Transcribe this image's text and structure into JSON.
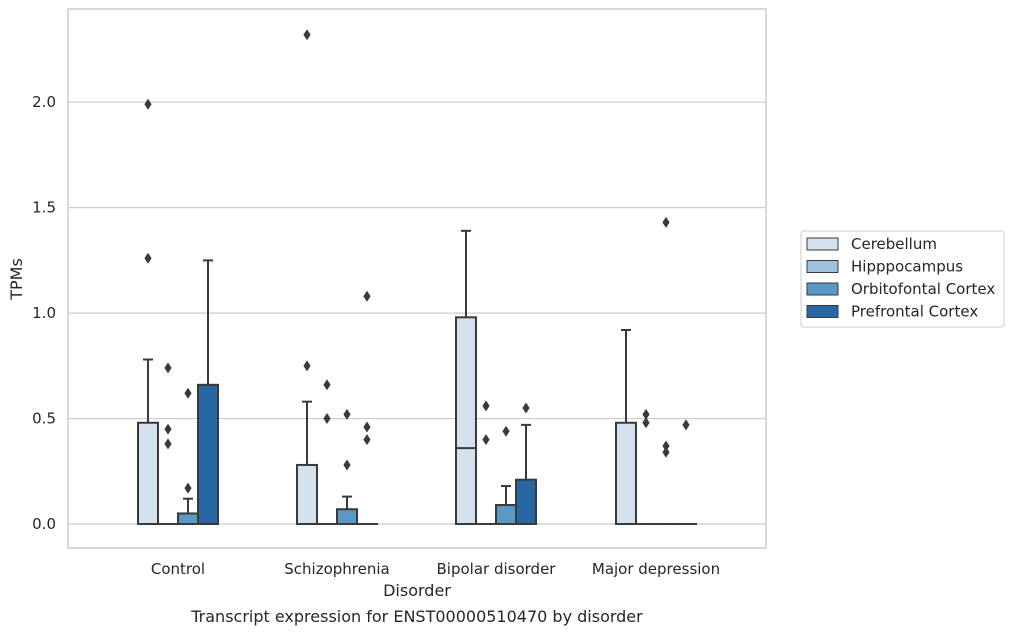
{
  "chart_data": {
    "type": "box",
    "title": "Transcript expression for ENST00000510470 by disorder",
    "xlabel": "Disorder",
    "ylabel": "TPMs",
    "ylim": [
      -0.11,
      2.45
    ],
    "yticks": [
      0.0,
      0.5,
      1.0,
      1.5,
      2.0
    ],
    "ytick_labels": [
      "0.0",
      "0.5",
      "1.0",
      "1.5",
      "2.0"
    ],
    "grid": "horizontal",
    "legend_position": "right",
    "categories": [
      "Control",
      "Schizophrenia",
      "Bipolar disorder",
      "Major depression"
    ],
    "series": [
      {
        "name": "Cerebellum",
        "color": "#d4e2f0",
        "boxes": [
          {
            "q1": 0.0,
            "median": 0.0,
            "q3": 0.48,
            "whisker_low": 0.0,
            "whisker_high": 0.78,
            "outliers": [
              1.26,
              1.99
            ]
          },
          {
            "q1": 0.0,
            "median": 0.0,
            "q3": 0.28,
            "whisker_low": 0.0,
            "whisker_high": 0.58,
            "outliers": [
              0.75,
              2.32
            ]
          },
          {
            "q1": 0.0,
            "median": 0.36,
            "q3": 0.98,
            "whisker_low": 0.0,
            "whisker_high": 1.39,
            "outliers": []
          },
          {
            "q1": 0.0,
            "median": 0.0,
            "q3": 0.48,
            "whisker_low": 0.0,
            "whisker_high": 0.92,
            "outliers": []
          }
        ]
      },
      {
        "name": "Hipppocampus",
        "color": "#9dc3de",
        "boxes": [
          {
            "q1": 0.0,
            "median": 0.0,
            "q3": 0.0,
            "whisker_low": 0.0,
            "whisker_high": 0.0,
            "outliers": [
              0.38,
              0.45,
              0.74
            ]
          },
          {
            "q1": 0.0,
            "median": 0.0,
            "q3": 0.0,
            "whisker_low": 0.0,
            "whisker_high": 0.0,
            "outliers": [
              0.5,
              0.66
            ]
          },
          {
            "q1": 0.0,
            "median": 0.0,
            "q3": 0.0,
            "whisker_low": 0.0,
            "whisker_high": 0.0,
            "outliers": [
              0.4,
              0.56
            ]
          },
          {
            "q1": 0.0,
            "median": 0.0,
            "q3": 0.0,
            "whisker_low": 0.0,
            "whisker_high": 0.0,
            "outliers": [
              0.48,
              0.52
            ]
          }
        ]
      },
      {
        "name": "Orbitofontal Cortex",
        "color": "#5a98c6",
        "boxes": [
          {
            "q1": 0.0,
            "median": 0.0,
            "q3": 0.05,
            "whisker_low": 0.0,
            "whisker_high": 0.12,
            "outliers": [
              0.17,
              0.62
            ]
          },
          {
            "q1": 0.0,
            "median": 0.0,
            "q3": 0.07,
            "whisker_low": 0.0,
            "whisker_high": 0.13,
            "outliers": [
              0.28,
              0.52
            ]
          },
          {
            "q1": 0.0,
            "median": 0.0,
            "q3": 0.09,
            "whisker_low": 0.0,
            "whisker_high": 0.18,
            "outliers": [
              0.44
            ]
          },
          {
            "q1": 0.0,
            "median": 0.0,
            "q3": 0.0,
            "whisker_low": 0.0,
            "whisker_high": 0.0,
            "outliers": [
              0.34,
              0.37,
              1.43
            ]
          }
        ]
      },
      {
        "name": "Prefrontal Cortex",
        "color": "#2866a4",
        "boxes": [
          {
            "q1": 0.0,
            "median": 0.0,
            "q3": 0.66,
            "whisker_low": 0.0,
            "whisker_high": 1.25,
            "outliers": []
          },
          {
            "q1": 0.0,
            "median": 0.0,
            "q3": 0.0,
            "whisker_low": 0.0,
            "whisker_high": 0.0,
            "outliers": [
              0.4,
              0.46,
              1.08
            ]
          },
          {
            "q1": 0.0,
            "median": 0.0,
            "q3": 0.21,
            "whisker_low": 0.0,
            "whisker_high": 0.47,
            "outliers": [
              0.55
            ]
          },
          {
            "q1": 0.0,
            "median": 0.0,
            "q3": 0.0,
            "whisker_low": 0.0,
            "whisker_high": 0.0,
            "outliers": [
              0.47
            ]
          }
        ]
      }
    ]
  }
}
